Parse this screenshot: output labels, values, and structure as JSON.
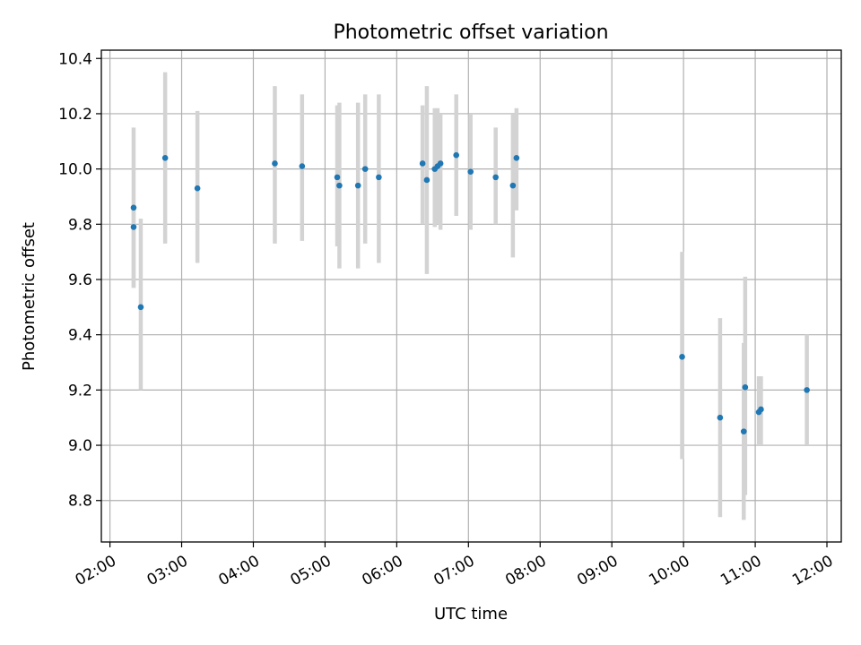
{
  "chart_data": {
    "type": "scatter",
    "title": "Photometric offset variation",
    "xlabel": "UTC time",
    "ylabel": "Photometric offset",
    "x_unit": "hours UTC",
    "xlim": [
      1.88,
      12.2
    ],
    "ylim": [
      8.65,
      10.43
    ],
    "x_ticks": [
      {
        "value": 2,
        "label": "02:00"
      },
      {
        "value": 3,
        "label": "03:00"
      },
      {
        "value": 4,
        "label": "04:00"
      },
      {
        "value": 5,
        "label": "05:00"
      },
      {
        "value": 6,
        "label": "06:00"
      },
      {
        "value": 7,
        "label": "07:00"
      },
      {
        "value": 8,
        "label": "08:00"
      },
      {
        "value": 9,
        "label": "09:00"
      },
      {
        "value": 10,
        "label": "10:00"
      },
      {
        "value": 11,
        "label": "11:00"
      },
      {
        "value": 12,
        "label": "12:00"
      }
    ],
    "y_ticks": [
      {
        "value": 8.8,
        "label": "8.8"
      },
      {
        "value": 9.0,
        "label": "9.0"
      },
      {
        "value": 9.2,
        "label": "9.2"
      },
      {
        "value": 9.4,
        "label": "9.4"
      },
      {
        "value": 9.6,
        "label": "9.6"
      },
      {
        "value": 9.8,
        "label": "9.8"
      },
      {
        "value": 10.0,
        "label": "10.0"
      },
      {
        "value": 10.2,
        "label": "10.2"
      },
      {
        "value": 10.4,
        "label": "10.4"
      }
    ],
    "grid": true,
    "marker_color": "#1f77b4",
    "errorbar_color": "#d3d3d3",
    "points": [
      {
        "x": 2.33,
        "y": 9.86,
        "err_low": 9.57,
        "err_high": 10.15
      },
      {
        "x": 2.33,
        "y": 9.79,
        "err_low": 9.57,
        "err_high": 9.86
      },
      {
        "x": 2.43,
        "y": 9.5,
        "err_low": 9.2,
        "err_high": 9.82
      },
      {
        "x": 2.77,
        "y": 10.04,
        "err_low": 9.73,
        "err_high": 10.35
      },
      {
        "x": 3.22,
        "y": 9.93,
        "err_low": 9.66,
        "err_high": 10.21
      },
      {
        "x": 4.3,
        "y": 10.02,
        "err_low": 9.73,
        "err_high": 10.3
      },
      {
        "x": 4.68,
        "y": 10.01,
        "err_low": 9.74,
        "err_high": 10.27
      },
      {
        "x": 5.17,
        "y": 9.97,
        "err_low": 9.72,
        "err_high": 10.23
      },
      {
        "x": 5.2,
        "y": 9.94,
        "err_low": 9.64,
        "err_high": 10.24
      },
      {
        "x": 5.46,
        "y": 9.94,
        "err_low": 9.64,
        "err_high": 10.24
      },
      {
        "x": 5.56,
        "y": 10.0,
        "err_low": 9.73,
        "err_high": 10.27
      },
      {
        "x": 5.75,
        "y": 9.97,
        "err_low": 9.66,
        "err_high": 10.27
      },
      {
        "x": 6.36,
        "y": 10.02,
        "err_low": 9.8,
        "err_high": 10.23
      },
      {
        "x": 6.42,
        "y": 9.96,
        "err_low": 9.62,
        "err_high": 10.3
      },
      {
        "x": 6.53,
        "y": 10.0,
        "err_low": 9.79,
        "err_high": 10.22
      },
      {
        "x": 6.57,
        "y": 10.01,
        "err_low": 9.8,
        "err_high": 10.22
      },
      {
        "x": 6.61,
        "y": 10.02,
        "err_low": 9.78,
        "err_high": 10.2
      },
      {
        "x": 6.83,
        "y": 10.05,
        "err_low": 9.83,
        "err_high": 10.27
      },
      {
        "x": 7.03,
        "y": 9.99,
        "err_low": 9.78,
        "err_high": 10.2
      },
      {
        "x": 7.38,
        "y": 9.97,
        "err_low": 9.8,
        "err_high": 10.15
      },
      {
        "x": 7.62,
        "y": 9.94,
        "err_low": 9.68,
        "err_high": 10.2
      },
      {
        "x": 7.67,
        "y": 10.04,
        "err_low": 9.85,
        "err_high": 10.22
      },
      {
        "x": 9.98,
        "y": 9.32,
        "err_low": 8.95,
        "err_high": 9.7
      },
      {
        "x": 10.51,
        "y": 9.1,
        "err_low": 8.74,
        "err_high": 9.46
      },
      {
        "x": 10.84,
        "y": 9.05,
        "err_low": 8.73,
        "err_high": 9.37
      },
      {
        "x": 10.86,
        "y": 9.21,
        "err_low": 8.82,
        "err_high": 9.61
      },
      {
        "x": 11.05,
        "y": 9.12,
        "err_low": 9.0,
        "err_high": 9.25
      },
      {
        "x": 11.08,
        "y": 9.13,
        "err_low": 9.0,
        "err_high": 9.25
      },
      {
        "x": 11.72,
        "y": 9.2,
        "err_low": 9.0,
        "err_high": 9.4
      }
    ]
  }
}
